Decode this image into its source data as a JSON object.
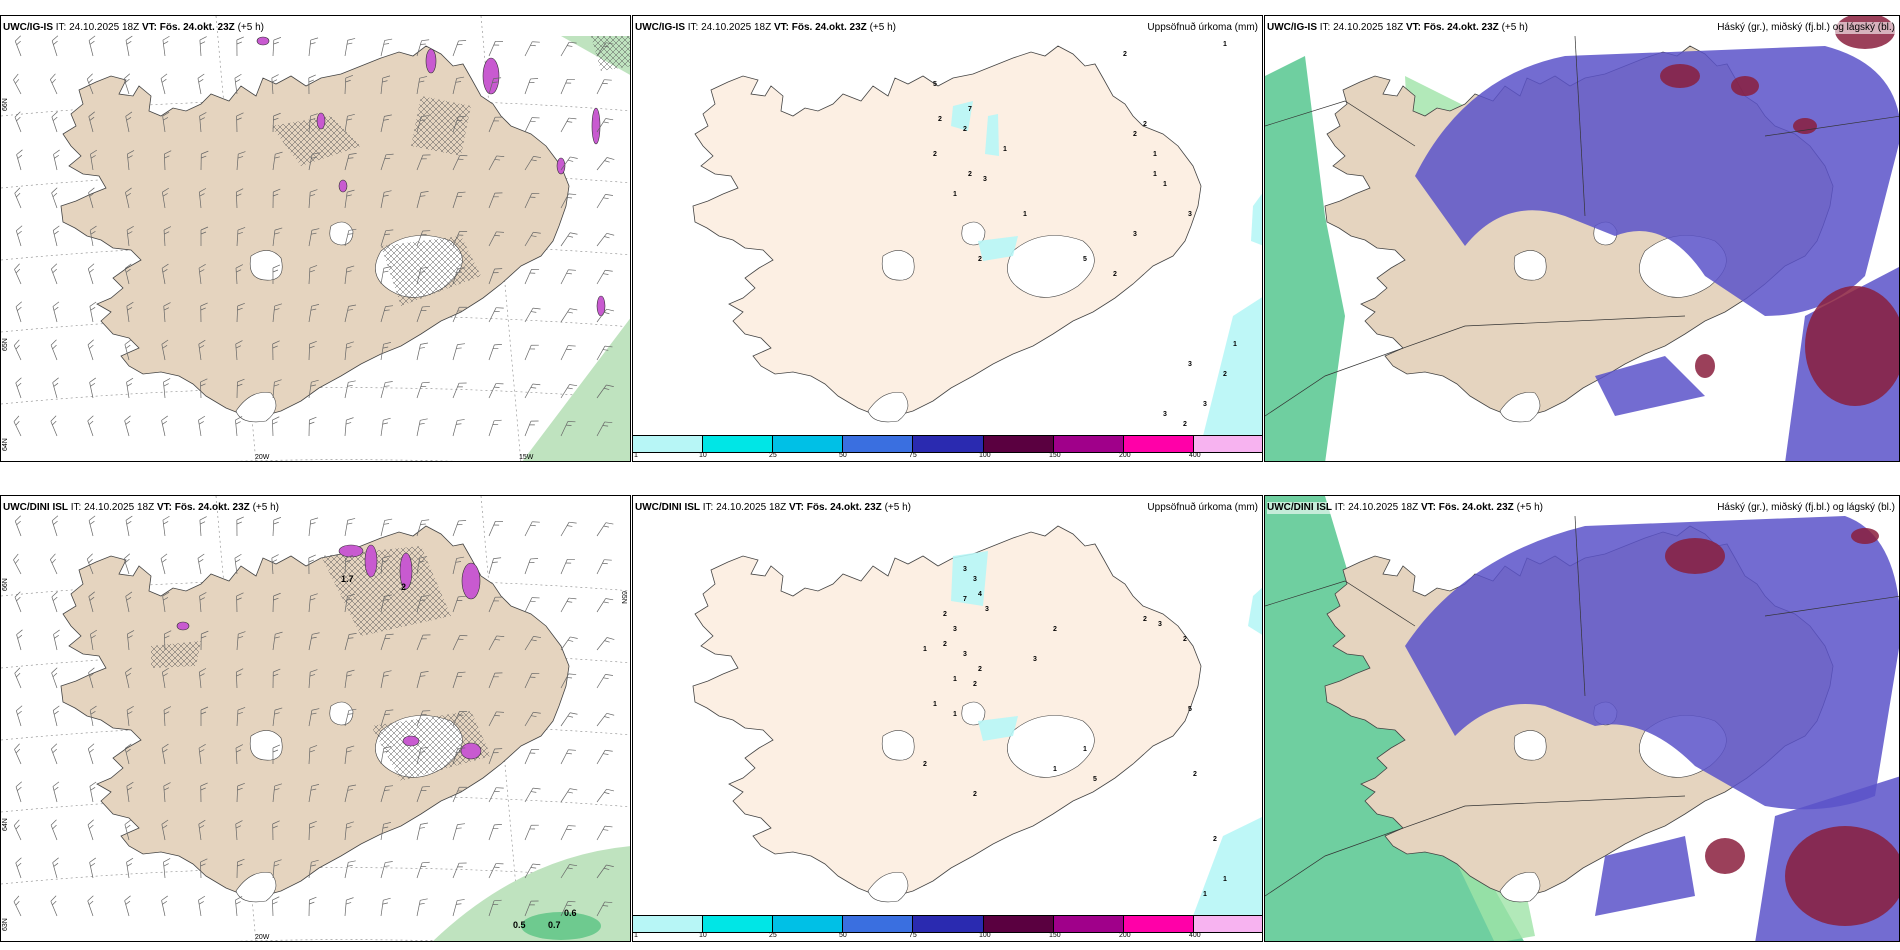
{
  "colors": {
    "land": "#e5d4bf",
    "land_light": "#fcefe3",
    "coast": "#444444",
    "accent_purple": "#5b52c9",
    "accent_red": "#8a1e3d",
    "precip_cyan": "#b7f6f6",
    "green": "#4cbf7a",
    "magenta": "#c85ad0"
  },
  "icons": [
    "wind-barb-icon",
    "cross-hatch-icon",
    "coastline-icon"
  ],
  "panels": [
    {
      "id": "p1",
      "model": "UWC/IG-IS",
      "it_label": "IT:",
      "it_value": "24.10.2025 18Z",
      "vt_label": "VT:",
      "vt_value": "Fös. 24.okt. 23Z",
      "lead": "(+5 h)",
      "right_title": "",
      "kind": "wind",
      "lon_labels": [
        "20W",
        "15W"
      ],
      "lat_labels": [
        "66N",
        "65N",
        "64N",
        "63N"
      ]
    },
    {
      "id": "p2",
      "model": "UWC/IG-IS",
      "it_label": "IT:",
      "it_value": "24.10.2025 18Z",
      "vt_label": "VT:",
      "vt_value": "Fös. 24.okt. 23Z",
      "lead": "(+5 h)",
      "right_title": "Uppsöfnuð úrkoma (mm)",
      "kind": "precip",
      "numbers": [
        "2",
        "1",
        "5",
        "7",
        "2",
        "2",
        "1",
        "2",
        "2",
        "3",
        "1",
        "1",
        "3",
        "2",
        "5",
        "2",
        "2",
        "1",
        "1",
        "3",
        "1",
        "2",
        "3",
        "1",
        "2",
        "3",
        "3",
        "2"
      ]
    },
    {
      "id": "p3",
      "model": "UWC/IG-IS",
      "it_label": "IT:",
      "it_value": "24.10.2025 18Z",
      "vt_label": "VT:",
      "vt_value": "Fös. 24.okt. 23Z",
      "lead": "(+5 h)",
      "right_title": "Háský (gr.), miðský (fj.bl.) og lágský (bl.)",
      "kind": "cloud"
    },
    {
      "id": "p4",
      "model": "UWC/DINI ISL",
      "it_label": "IT:",
      "it_value": "24.10.2025 18Z",
      "vt_label": "VT:",
      "vt_value": "Fös. 24.okt. 23Z",
      "lead": "(+5 h)",
      "right_title": "",
      "kind": "wind",
      "lon_labels": [
        "20W"
      ],
      "lat_labels": [
        "66N",
        "65N",
        "64N",
        "63N"
      ],
      "values": [
        "1.7",
        "2",
        "0.5",
        "0.7",
        "0.6"
      ]
    },
    {
      "id": "p5",
      "model": "UWC/DINI ISL",
      "it_label": "IT:",
      "it_value": "24.10.2025 18Z",
      "vt_label": "VT:",
      "vt_value": "Fös. 24.okt. 23Z",
      "lead": "(+5 h)",
      "right_title": "Uppsöfnuð úrkoma (mm)",
      "kind": "precip",
      "numbers": [
        "3",
        "3",
        "4",
        "3",
        "7",
        "2",
        "3",
        "2",
        "1",
        "3",
        "2",
        "1",
        "2",
        "1",
        "1",
        "2",
        "2",
        "5",
        "1",
        "1",
        "2",
        "3",
        "2",
        "2",
        "3",
        "5",
        "2",
        "2",
        "1",
        "1"
      ]
    },
    {
      "id": "p6",
      "model": "UWC/DINI ISL",
      "it_label": "IT:",
      "it_value": "24.10.2025 18Z",
      "vt_label": "VT:",
      "vt_value": "Fös. 24.okt. 23Z",
      "lead": "(+5 h)",
      "right_title": "Háský (gr.), miðský (fj.bl.) og lágský (bl.)",
      "kind": "cloud"
    }
  ],
  "colorbar": {
    "labels": [
      "1",
      "10",
      "25",
      "50",
      "75",
      "100",
      "150",
      "200",
      "400"
    ],
    "colors": [
      "#b7f6f6",
      "#00e6e6",
      "#00c0e6",
      "#3a6fe0",
      "#2a2ab0",
      "#5a0040",
      "#a0008a",
      "#ff00a8",
      "#f7b3f0"
    ]
  }
}
